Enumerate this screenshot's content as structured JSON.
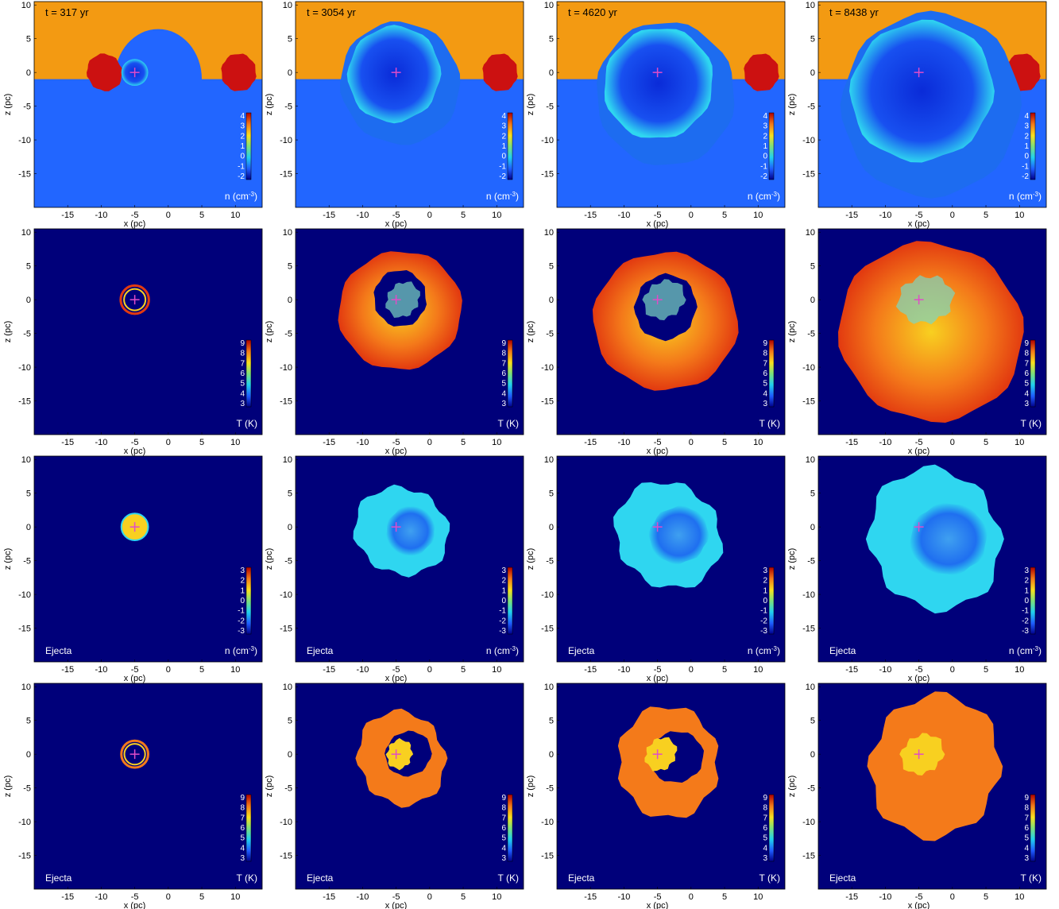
{
  "figure": {
    "columns": [
      {
        "time_label": "t = 317 yr"
      },
      {
        "time_label": "t = 3054 yr"
      },
      {
        "time_label": "t = 4620 yr"
      },
      {
        "time_label": "t = 8438 yr"
      }
    ],
    "rows": [
      {
        "quantity": "density",
        "colorbar_label": "n (cm-3)",
        "colorbar_label_base": "n (cm",
        "colorbar_label_sup": "-3",
        "colorbar_label_end": ")",
        "colorbar_ticks": [
          "4",
          "3",
          "2",
          "1",
          "0",
          "-1",
          "-2"
        ],
        "corner_label": ""
      },
      {
        "quantity": "temperature",
        "colorbar_label": "T (K)",
        "colorbar_label_base": "T (K)",
        "colorbar_label_sup": "",
        "colorbar_label_end": "",
        "colorbar_ticks": [
          "9",
          "8",
          "7",
          "6",
          "5",
          "4",
          "3"
        ],
        "corner_label": ""
      },
      {
        "quantity": "ejecta_density",
        "colorbar_label": "n (cm-3)",
        "colorbar_label_base": "n (cm",
        "colorbar_label_sup": "-3",
        "colorbar_label_end": ")",
        "colorbar_ticks": [
          "3",
          "2",
          "1",
          "0",
          "-1",
          "-2",
          "-3"
        ],
        "corner_label": "Ejecta"
      },
      {
        "quantity": "ejecta_temperature",
        "colorbar_label": "T (K)",
        "colorbar_label_base": "T (K)",
        "colorbar_label_sup": "",
        "colorbar_label_end": "",
        "colorbar_ticks": [
          "9",
          "8",
          "7",
          "6",
          "5",
          "4",
          "3"
        ],
        "corner_label": "Ejecta"
      }
    ],
    "x_axis": {
      "label": "x (pc)",
      "ticks": [
        "-15",
        "-10",
        "-5",
        "0",
        "5",
        "10"
      ],
      "range": [
        -20,
        14
      ]
    },
    "y_axis": {
      "label": "z (pc)",
      "ticks": [
        "10",
        "5",
        "0",
        "-5",
        "-10",
        "-15"
      ],
      "range": [
        -20,
        10.5
      ]
    },
    "explosion_marker": {
      "x": -5,
      "z": 0,
      "color": "#e04cc8"
    },
    "colors": {
      "background_dark": "#00007a",
      "ambient_low": "#2266ff",
      "cloud_orange": "#f39a12",
      "clump_red": "#cc1111",
      "hot_red": "#e23a10",
      "warm_orange": "#f47a1a",
      "yellow": "#f8d020",
      "cyan": "#2fd6f0",
      "light_blue": "#3fa0f0"
    }
  }
}
